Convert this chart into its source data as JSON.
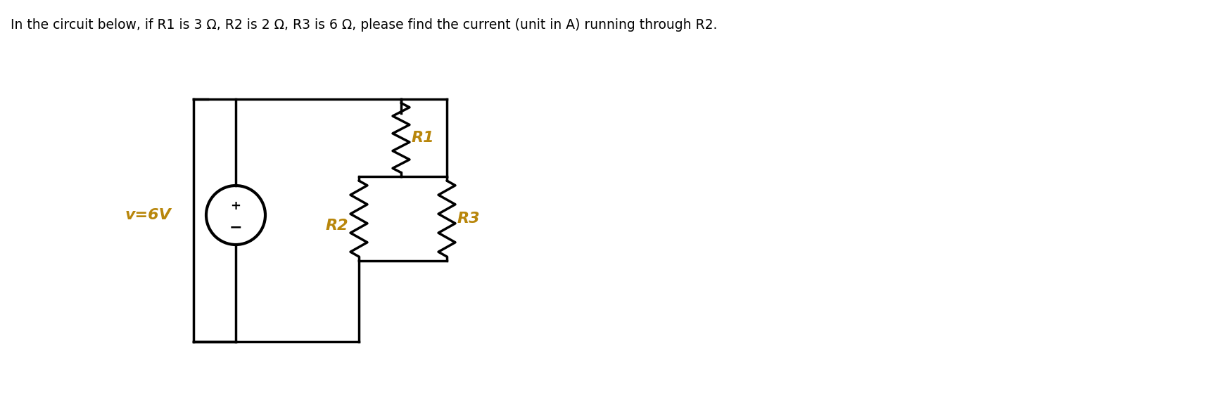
{
  "title_text": "In the circuit below, if R1 is 3 Ω, R2 is 2 Ω, R3 is 6 Ω, please find the current (unit in A) running through R2.",
  "title_fontsize": 13.5,
  "title_color": "#000000",
  "label_color": "#b8860b",
  "label_fontsize": 16,
  "voltage_label": "v=6V",
  "R1_label": "R1",
  "R2_label": "R2",
  "R3_label": "R3",
  "bg_color": "#ffffff",
  "line_color": "#000000",
  "line_width": 2.5,
  "resistor_color": "#000000",
  "fig_width": 17.21,
  "fig_height": 5.96
}
